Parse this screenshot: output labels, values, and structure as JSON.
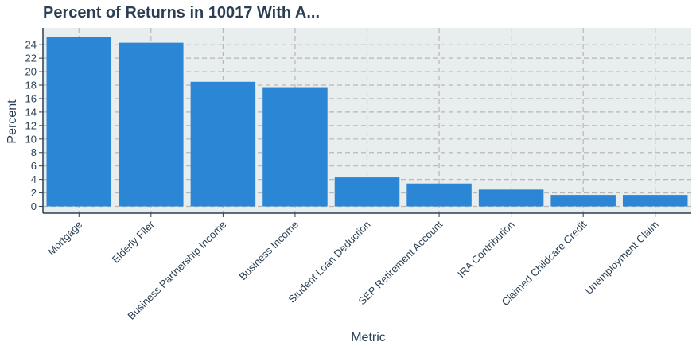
{
  "chart_data": {
    "type": "bar",
    "title": "Percent of Returns in 10017 With A...",
    "xlabel": "Metric",
    "ylabel": "Percent",
    "categories": [
      "Mortgage",
      "Elderly Filer",
      "Business Partnership Income",
      "Business Income",
      "Student Loan Deduction",
      "SEP Retirement Account",
      "IRA Contribution",
      "Claimed Childcare Credit",
      "Unemployment Claim"
    ],
    "values": [
      25.1,
      24.3,
      18.5,
      17.7,
      4.3,
      3.4,
      2.5,
      1.7,
      1.7
    ],
    "yticks": [
      0,
      2,
      4,
      6,
      8,
      10,
      12,
      14,
      16,
      18,
      20,
      22,
      24
    ],
    "ylim": [
      -1,
      26.5
    ],
    "grid": true,
    "colors": {
      "bar": "#2b86d5",
      "panel": "#e8eded",
      "grid": "#b8b8b8",
      "axis": "#2a3f54"
    }
  }
}
